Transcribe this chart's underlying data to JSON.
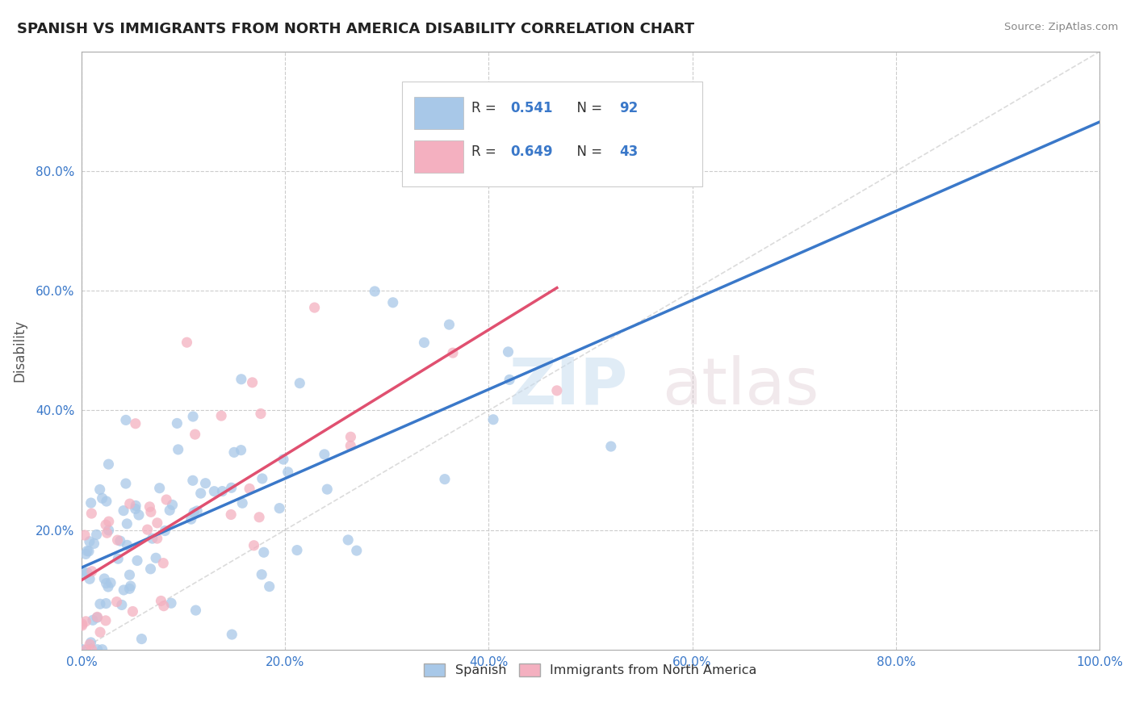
{
  "title": "SPANISH VS IMMIGRANTS FROM NORTH AMERICA DISABILITY CORRELATION CHART",
  "source": "Source: ZipAtlas.com",
  "ylabel": "Disability",
  "xlim": [
    0.0,
    1.0
  ],
  "ylim": [
    0.0,
    1.0
  ],
  "xtick_vals": [
    0.0,
    0.2,
    0.4,
    0.6,
    0.8,
    1.0
  ],
  "ytick_vals": [
    0.2,
    0.4,
    0.6,
    0.8
  ],
  "xtick_labels": [
    "0.0%",
    "20.0%",
    "40.0%",
    "60.0%",
    "80.0%",
    "100.0%"
  ],
  "ytick_labels": [
    "20.0%",
    "40.0%",
    "60.0%",
    "80.0%"
  ],
  "legend_R1": "0.541",
  "legend_N1": "92",
  "legend_R2": "0.649",
  "legend_N2": "43",
  "color_blue_scatter": "#a8c8e8",
  "color_pink_scatter": "#f4b0c0",
  "color_blue_line": "#3a78c9",
  "color_pink_line": "#e05070",
  "color_blue_text": "#3a78c9",
  "color_pink_text": "#3a78c9",
  "color_n_text": "#3a78c9",
  "color_label_text": "#333333",
  "color_grid": "#cccccc",
  "color_diag": "#cccccc",
  "color_title": "#222222",
  "color_source": "#888888",
  "color_axis_text": "#3a78c9",
  "background_color": "#ffffff",
  "fig_width": 14.06,
  "fig_height": 8.92,
  "seed_blue": 42,
  "seed_pink": 99
}
